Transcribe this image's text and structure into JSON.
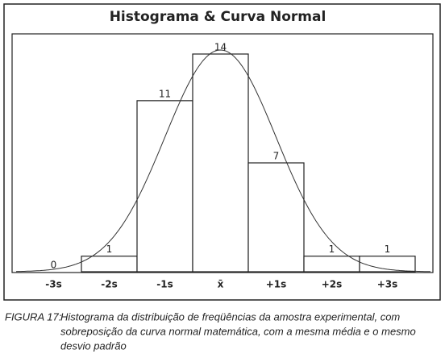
{
  "chart_data": {
    "type": "histogram",
    "title": "Histograma & Curva Normal",
    "categories": [
      "-3s",
      "-2s",
      "-1s",
      "x̄",
      "+1s",
      "+2s",
      "+3s"
    ],
    "values": [
      0,
      1,
      11,
      14,
      7,
      1,
      1
    ],
    "color": "#ffffff",
    "curve_color": "#333333",
    "caption_label": "FIGURA 17:",
    "caption_lines": [
      "Histograma da distribuição de freqüências da amostra experimental, com",
      "sobreposição da curva normal matemática, com a mesma média e o mesmo",
      "desvio padrão"
    ]
  }
}
